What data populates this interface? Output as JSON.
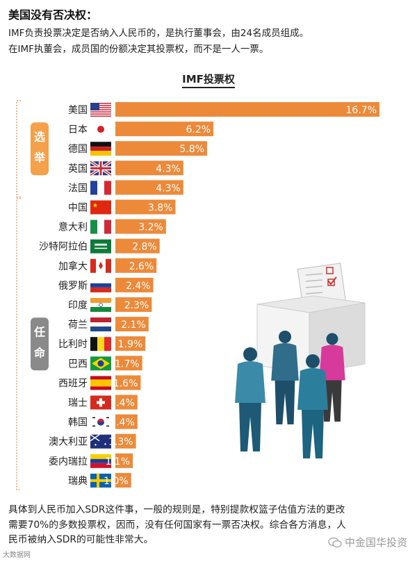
{
  "title": "美国没有否决权：",
  "intro": [
    "IMF负责投票决定是否纳入人民币的，是执行董事会，由24名成员组成。",
    "在IMF执董会，成员国的份额决定其投票权，而不是一人一票。"
  ],
  "groups": {
    "elected": "选举",
    "appointed": "任命"
  },
  "chart_data": {
    "type": "bar",
    "orientation": "horizontal",
    "title": "IMF投票权",
    "categories": [
      "美国",
      "日本",
      "德国",
      "英国",
      "法国",
      "中国",
      "意大利",
      "沙特阿拉伯",
      "加拿大",
      "俄罗斯",
      "印度",
      "荷兰",
      "比利时",
      "巴西",
      "西班牙",
      "瑞士",
      "韩国",
      "澳大利亚",
      "委内瑞拉",
      "瑞典"
    ],
    "values": [
      16.7,
      6.2,
      5.8,
      4.3,
      4.3,
      3.8,
      3.2,
      2.8,
      2.6,
      2.4,
      2.3,
      2.1,
      1.9,
      1.7,
      1.6,
      1.4,
      1.4,
      1.3,
      1.1,
      1.0
    ],
    "labels": [
      "16.7%",
      "6.2%",
      "5.8%",
      "4.3%",
      "4.3%",
      "3.8%",
      "3.2%",
      "2.8%",
      "2.6%",
      "2.4%",
      "2.3%",
      "2.1%",
      "1.9%",
      "1.7%",
      "1.6%",
      "1.4%",
      "1.4%",
      "1.3%",
      "1.1%",
      "1.0%"
    ],
    "flags": [
      "flag-us-icon",
      "flag-jp-icon",
      "flag-de-icon",
      "flag-gb-icon",
      "flag-fr-icon",
      "flag-cn-icon",
      "flag-it-icon",
      "flag-sa-icon",
      "flag-ca-icon",
      "flag-ru-icon",
      "flag-in-icon",
      "flag-nl-icon",
      "flag-be-icon",
      "flag-br-icon",
      "flag-es-icon",
      "flag-ch-icon",
      "flag-kr-icon",
      "flag-au-icon",
      "flag-ve-icon",
      "flag-se-icon"
    ],
    "bar_color": "#ec8a3a",
    "xlim": [
      0,
      16.7
    ]
  },
  "footer": [
    "具体到人民币加入SDR这件事，一般的规则是，特别提款权篮子估值方法的更改",
    "需要70%的多数投票权，因而，没有任何国家有一票否决权。综合各方消息，人",
    "民币被纳入SDR的可能性非常大。"
  ],
  "watermark_left": "大数据网",
  "watermark_right": "中金国华投资"
}
